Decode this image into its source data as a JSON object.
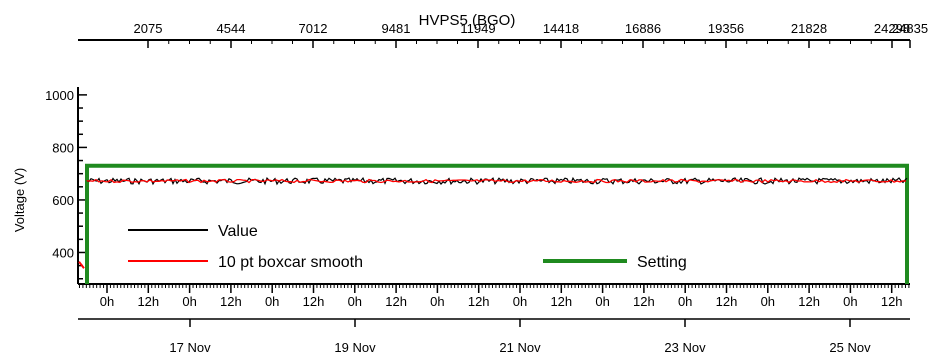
{
  "chart_data": {
    "type": "line",
    "title": "HVPS5 (BGO)",
    "ylabel": "Voltage (V)",
    "ylim": [
      280,
      1030
    ],
    "y_ticks": [
      400,
      600,
      800,
      1000
    ],
    "top_axis_ticks": [
      "2075",
      "4544",
      "7012",
      "9481",
      "11949",
      "14418",
      "16886",
      "19356",
      "21828",
      "24298",
      "24835"
    ],
    "hour_tick_labels": [
      "0h",
      "12h",
      "0h",
      "12h",
      "0h",
      "12h",
      "0h",
      "12h",
      "0h",
      "12h",
      "0h",
      "12h",
      "0h",
      "12h",
      "0h",
      "12h",
      "0h",
      "12h",
      "0h",
      "12h"
    ],
    "date_tick_labels": [
      "17 Nov",
      "19 Nov",
      "21 Nov",
      "23 Nov",
      "25 Nov"
    ],
    "series": [
      {
        "name": "Value",
        "color": "#000000",
        "approx_level": 672
      },
      {
        "name": "10 pt boxcar smooth",
        "color": "#ff0000",
        "approx_level": 672
      },
      {
        "name": "Setting",
        "color": "#1f8a1f",
        "value": 730
      }
    ],
    "grid": false,
    "legend": "bottom-left"
  }
}
